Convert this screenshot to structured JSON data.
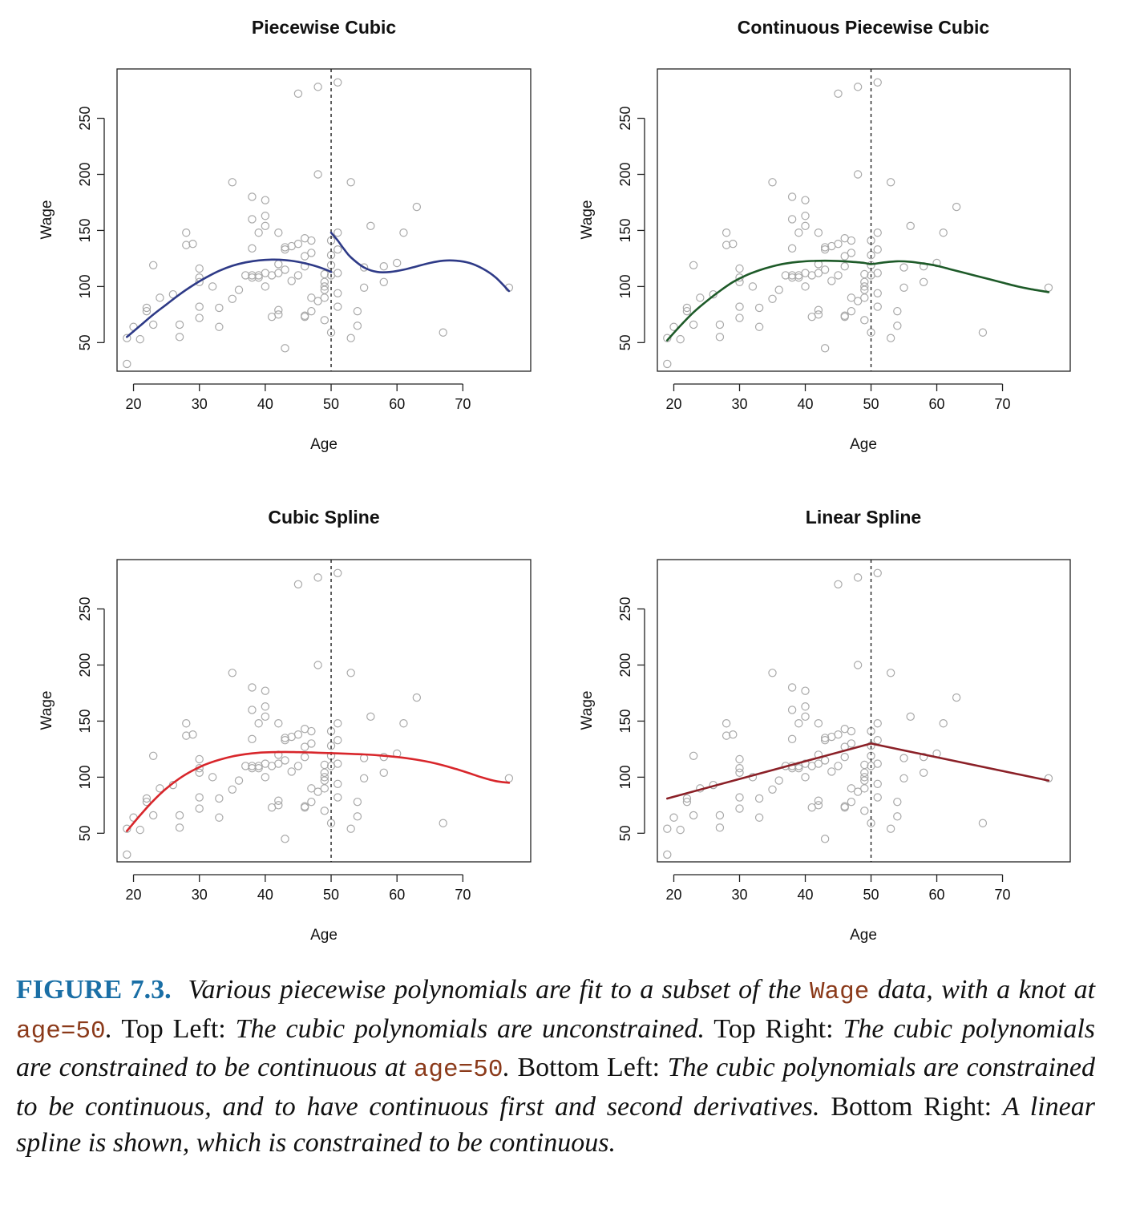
{
  "colors": {
    "points": "#a9a9a9",
    "knot_line": "#111111",
    "frame": "#222222",
    "caption_label": "#1a6fa6",
    "caption_code": "#8b3a1a"
  },
  "caption": {
    "label": "FIGURE 7.3.",
    "s1": "Various piecewise polynomials are fit to a subset of the",
    "code1": "Wage",
    "s2": "data, with a knot at",
    "code2": "age=50",
    "s3": ".",
    "r1": "Top Left:",
    "s4": "The cubic polynomials are unconstrained.",
    "r2": "Top Right:",
    "s5": "The cubic polynomials are constrained to be continuous at",
    "code3": "age=50",
    "s6": ".",
    "r3": "Bottom Left:",
    "s7": "The cubic polynomials are constrained to be continuous, and to have continuous first and second derivatives.",
    "r4": "Bottom Right:",
    "s8": "A linear spline is shown, which is constrained to be continuous."
  },
  "chart_data": [
    {
      "type": "scatter",
      "title": "Piecewise Cubic",
      "xlabel": "Age",
      "ylabel": "Wage",
      "xticks": [
        20,
        30,
        40,
        50,
        60,
        70
      ],
      "yticks": [
        50,
        100,
        150,
        200,
        250
      ],
      "xlim": [
        17.5,
        80.3
      ],
      "ylim": [
        24.5,
        294
      ],
      "knot": 50,
      "fit_color": "#2e3a87",
      "fit": [
        {
          "x": [
            19,
            21,
            23,
            25,
            27,
            29,
            31,
            33,
            35,
            37,
            39,
            41,
            43,
            45,
            47,
            49,
            50
          ],
          "y": [
            55,
            65,
            75,
            84,
            93,
            101,
            108,
            114,
            118.5,
            121.5,
            123.3,
            124,
            123.6,
            122,
            119.3,
            115.5,
            113
          ]
        },
        {
          "x": [
            50,
            51,
            52,
            53,
            55,
            57,
            59,
            61,
            63,
            65,
            67,
            69,
            71,
            73,
            75,
            77
          ],
          "y": [
            148,
            141,
            133,
            126,
            117,
            113,
            113,
            115,
            118,
            121,
            123,
            123,
            121,
            116,
            108,
            96
          ]
        }
      ]
    },
    {
      "type": "scatter",
      "title": "Continuous Piecewise Cubic",
      "xlabel": "Age",
      "ylabel": "Wage",
      "xticks": [
        20,
        30,
        40,
        50,
        60,
        70
      ],
      "yticks": [
        50,
        100,
        150,
        200,
        250
      ],
      "xlim": [
        17.5,
        80.3
      ],
      "ylim": [
        24.5,
        294
      ],
      "knot": 50,
      "fit_color": "#1d5a28",
      "fit": [
        {
          "x": [
            19,
            21,
            23,
            25,
            27,
            29,
            31,
            33,
            35,
            37,
            39,
            41,
            43,
            45,
            47,
            49,
            50,
            52,
            54,
            56,
            58,
            60,
            62,
            64,
            66,
            68,
            70,
            72,
            74,
            77
          ],
          "y": [
            52,
            65,
            77,
            87,
            96,
            104,
            110,
            114.5,
            118,
            120.5,
            122,
            122.8,
            123,
            122.7,
            122,
            121,
            120,
            121.5,
            122.5,
            122,
            120.5,
            118.5,
            115.5,
            112.5,
            109.5,
            106.5,
            103.5,
            100.5,
            98,
            95
          ]
        }
      ]
    },
    {
      "type": "scatter",
      "title": "Cubic Spline",
      "xlabel": "Age",
      "ylabel": "Wage",
      "xticks": [
        20,
        30,
        40,
        50,
        60,
        70
      ],
      "yticks": [
        50,
        100,
        150,
        200,
        250
      ],
      "xlim": [
        17.5,
        80.3
      ],
      "ylim": [
        24.5,
        294
      ],
      "knot": 50,
      "fit_color": "#d8262b",
      "fit": [
        {
          "x": [
            19,
            21,
            23,
            25,
            27,
            29,
            31,
            33,
            35,
            37,
            39,
            41,
            43,
            45,
            47,
            49,
            51,
            53,
            55,
            57,
            59,
            61,
            63,
            65,
            67,
            69,
            71,
            73,
            75,
            77
          ],
          "y": [
            52,
            66,
            79,
            90,
            99,
            106,
            111.5,
            115.5,
            118.5,
            120.5,
            121.8,
            122.3,
            122.5,
            122.3,
            122,
            121.6,
            121.2,
            120.8,
            120.3,
            119.6,
            118.6,
            117.3,
            115.6,
            113.4,
            110.6,
            107.2,
            103.5,
            99.6,
            96.5,
            95
          ]
        }
      ]
    },
    {
      "type": "scatter",
      "title": "Linear Spline",
      "xlabel": "Age",
      "ylabel": "Wage",
      "xticks": [
        20,
        30,
        40,
        50,
        60,
        70
      ],
      "yticks": [
        50,
        100,
        150,
        200,
        250
      ],
      "xlim": [
        17.5,
        80.3
      ],
      "ylim": [
        24.5,
        294
      ],
      "knot": 50,
      "fit_color": "#8b2027",
      "fit": [
        {
          "x": [
            19,
            50,
            77
          ],
          "y": [
            81,
            130,
            97
          ]
        }
      ]
    }
  ],
  "points": {
    "x": [
      19,
      19,
      20,
      21,
      22,
      22,
      23,
      23,
      24,
      26,
      27,
      27,
      28,
      28,
      29,
      30,
      30,
      30,
      30,
      30,
      32,
      33,
      33,
      35,
      35,
      36,
      37,
      38,
      38,
      38,
      38,
      38,
      39,
      39,
      39,
      40,
      40,
      40,
      40,
      40,
      41,
      41,
      42,
      42,
      42,
      42,
      42,
      43,
      43,
      43,
      43,
      44,
      44,
      45,
      45,
      45,
      46,
      46,
      46,
      46,
      46,
      47,
      47,
      47,
      47,
      48,
      48,
      48,
      49,
      49,
      49,
      49,
      49,
      49,
      50,
      50,
      50,
      50,
      50,
      51,
      51,
      51,
      51,
      51,
      51,
      53,
      53,
      54,
      54,
      55,
      55,
      56,
      58,
      58,
      60,
      61,
      63,
      67,
      77
    ],
    "y": [
      31,
      54,
      64,
      53,
      81,
      78,
      119,
      66,
      90,
      93,
      55,
      66,
      148,
      137,
      138,
      116,
      108,
      104,
      82,
      72,
      100,
      81,
      64,
      89,
      193,
      97,
      110,
      180,
      160,
      134,
      110,
      108,
      110,
      148,
      108,
      177,
      163,
      154,
      112,
      100,
      110,
      73,
      148,
      120,
      112,
      79,
      75,
      135,
      133,
      115,
      45,
      136,
      105,
      272,
      138,
      110,
      143,
      127,
      118,
      74,
      73,
      141,
      130,
      90,
      78,
      278,
      200,
      87,
      111,
      104,
      100,
      97,
      90,
      70,
      141,
      128,
      119,
      110,
      59,
      282,
      148,
      133,
      112,
      94,
      82,
      193,
      54,
      78,
      65,
      117,
      99,
      154,
      118,
      104,
      121,
      148,
      171,
      59,
      99
    ]
  }
}
